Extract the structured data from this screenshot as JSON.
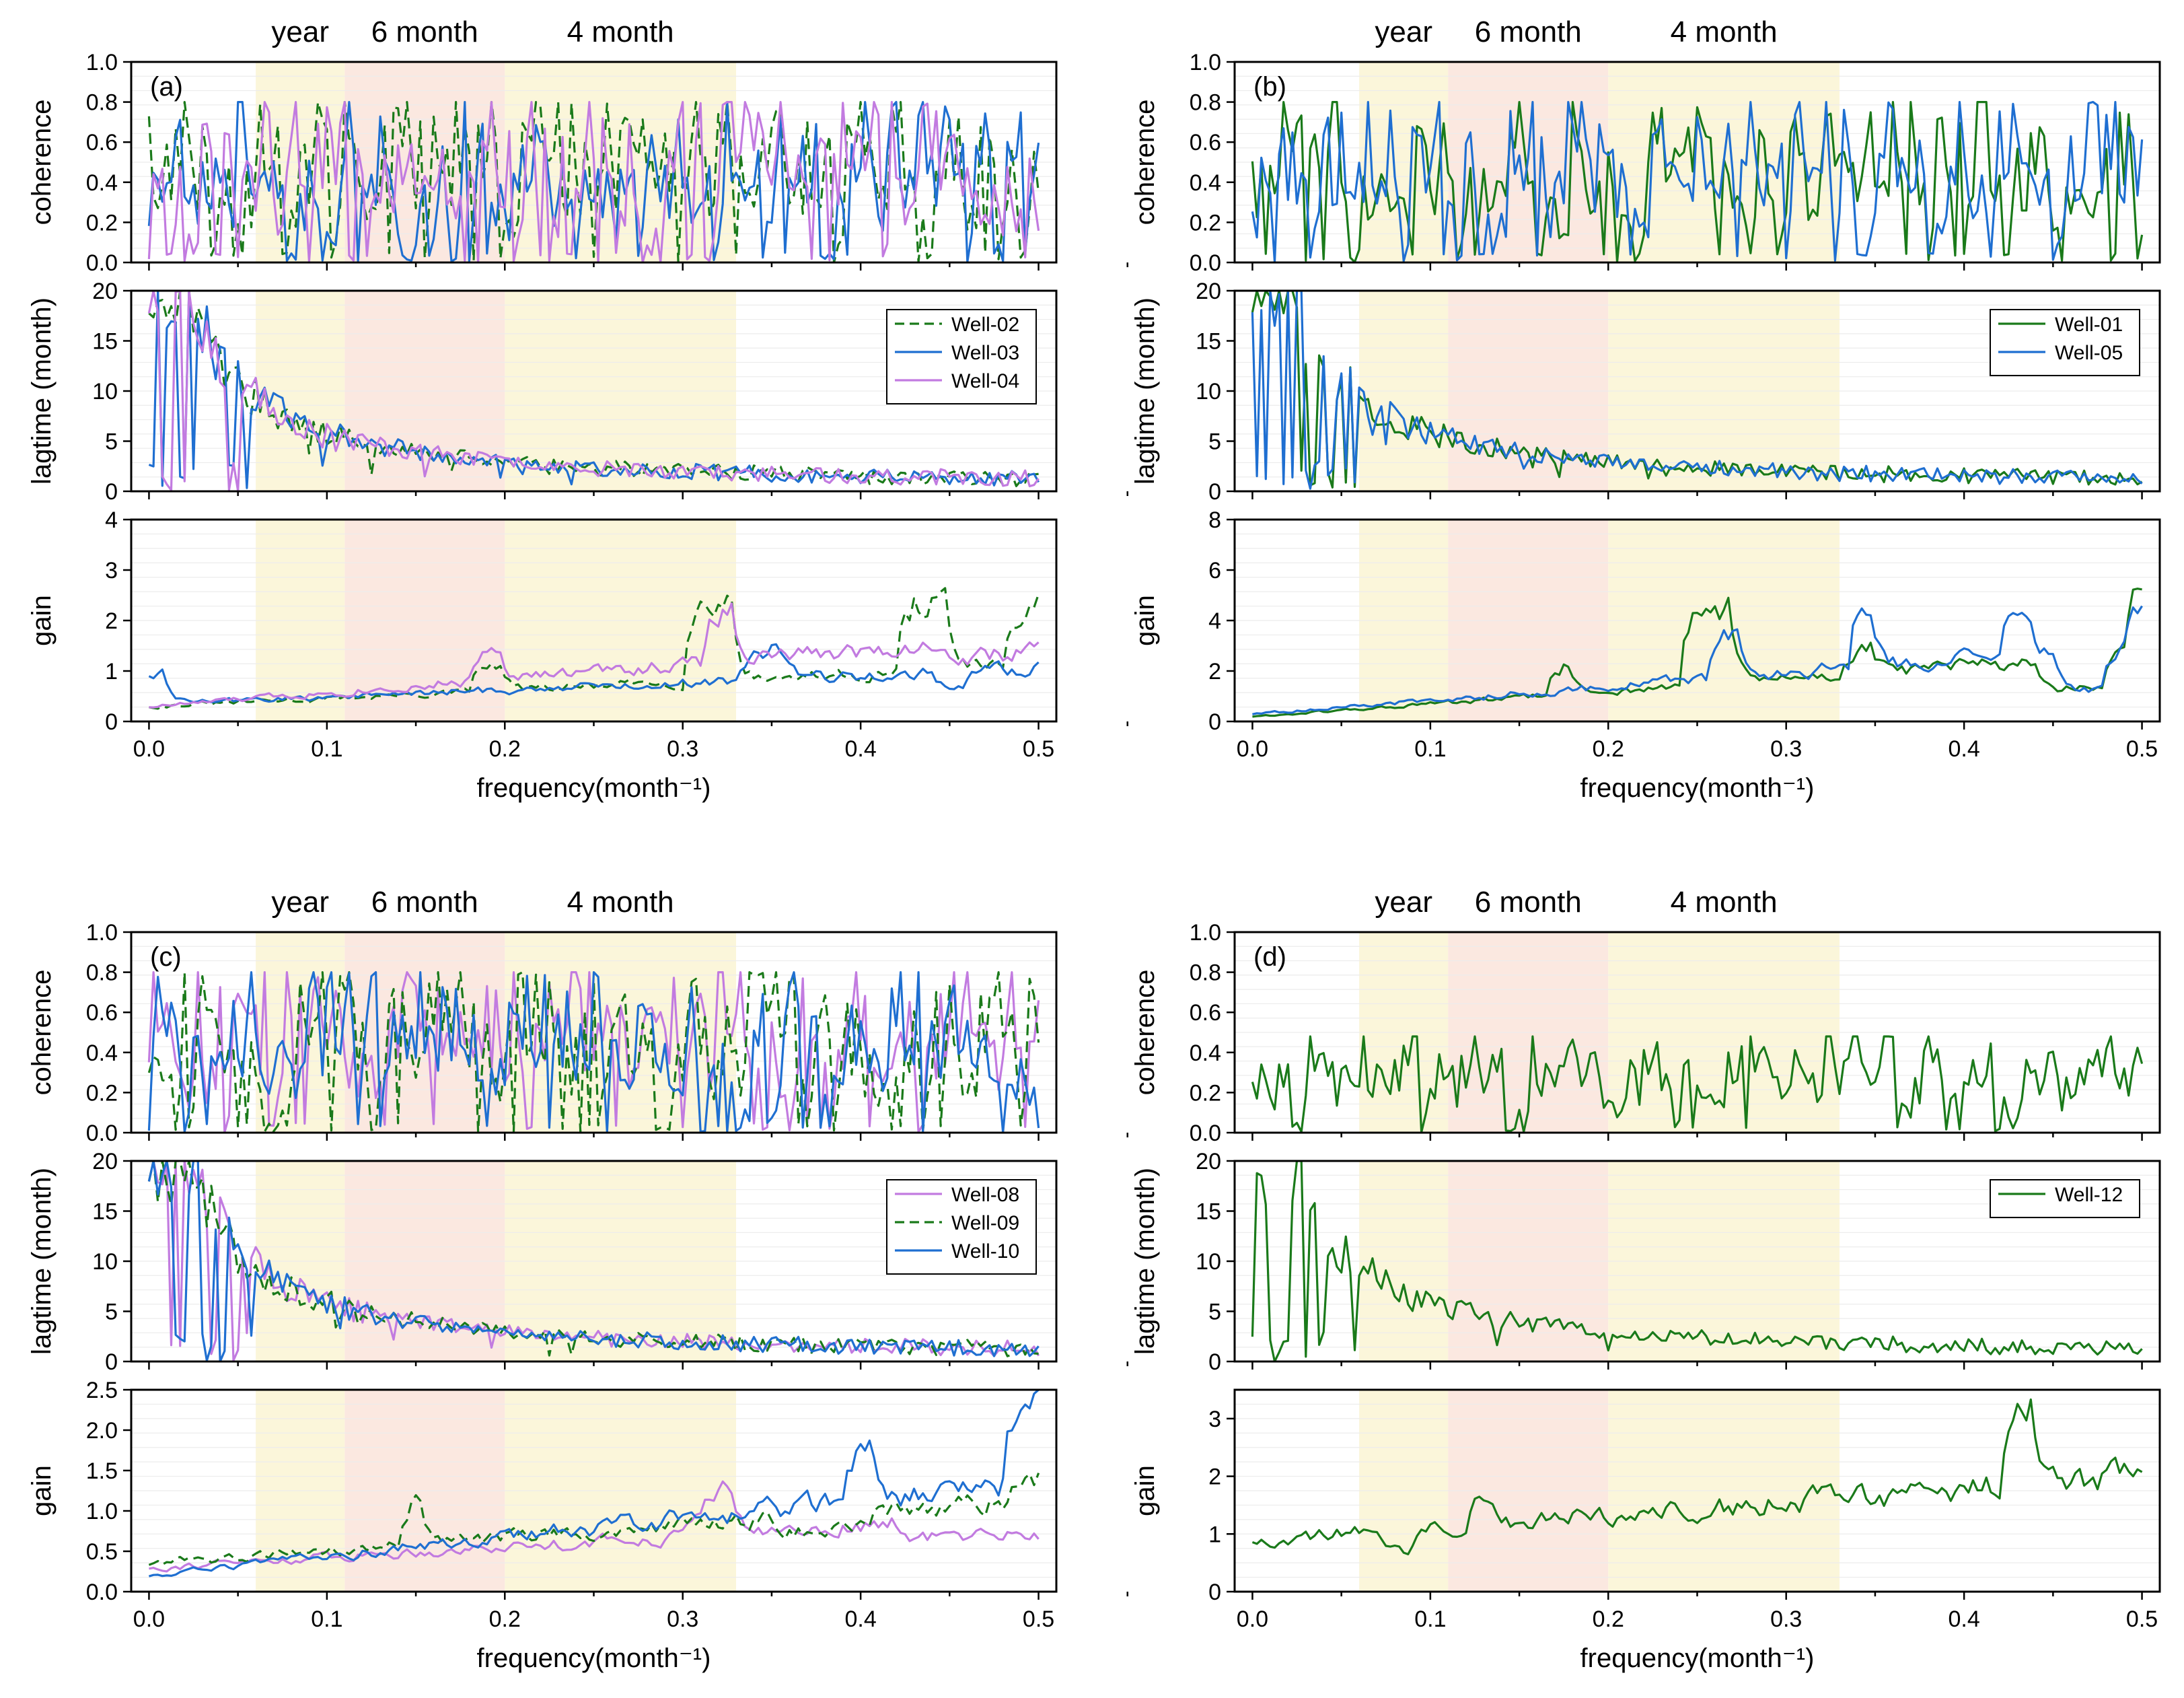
{
  "chart_data": [
    {
      "panel": "(a)",
      "type": "line",
      "bands": {
        "labels": [
          "year",
          "6 month",
          "4 month"
        ]
      },
      "xlabel": "frequency(month⁻¹)",
      "xticks": [
        "0.0",
        "0.1",
        "0.2",
        "0.3",
        "0.4",
        "0.5"
      ],
      "xlim": [
        -0.01,
        0.51
      ],
      "series": [
        {
          "name": "Well-02",
          "color": "#1a7a1a",
          "dash": true
        },
        {
          "name": "Well-03",
          "color": "#1f6fd1",
          "dash": false
        },
        {
          "name": "Well-04",
          "color": "#c27be0",
          "dash": false
        }
      ],
      "subplots": [
        {
          "ylabel": "coherence",
          "ylim": [
            0,
            1.0
          ],
          "yticks": [
            "0.0",
            "0.2",
            "0.4",
            "0.6",
            "0.8",
            "1.0"
          ]
        },
        {
          "ylabel": "lagtime (month)",
          "ylim": [
            0,
            20
          ],
          "yticks": [
            "0",
            "5",
            "10",
            "15",
            "20"
          ],
          "legend": true
        },
        {
          "ylabel": "gain",
          "ylim": [
            0,
            4
          ],
          "yticks": [
            "0",
            "1",
            "2",
            "3",
            "4"
          ]
        }
      ]
    },
    {
      "panel": "(b)",
      "type": "line",
      "bands": {
        "labels": [
          "year",
          "6 month",
          "4 month"
        ]
      },
      "xlabel": "frequency(month⁻¹)",
      "xticks": [
        "0.0",
        "0.1",
        "0.2",
        "0.3",
        "0.4",
        "0.5"
      ],
      "xlim": [
        -0.01,
        0.51
      ],
      "series": [
        {
          "name": "Well-01",
          "color": "#1a7a1a",
          "dash": false
        },
        {
          "name": "Well-05",
          "color": "#1f6fd1",
          "dash": false
        }
      ],
      "subplots": [
        {
          "ylabel": "coherence",
          "ylim": [
            0,
            1.0
          ],
          "yticks": [
            "0.0",
            "0.2",
            "0.4",
            "0.6",
            "0.8",
            "1.0"
          ]
        },
        {
          "ylabel": "lagtime (month)",
          "ylim": [
            0,
            20
          ],
          "yticks": [
            "0",
            "5",
            "10",
            "15",
            "20"
          ],
          "legend": true
        },
        {
          "ylabel": "gain",
          "ylim": [
            0,
            8
          ],
          "yticks": [
            "0",
            "2",
            "4",
            "6",
            "8"
          ]
        }
      ]
    },
    {
      "panel": "(c)",
      "type": "line",
      "bands": {
        "labels": [
          "year",
          "6 month",
          "4 month"
        ]
      },
      "xlabel": "frequency(month⁻¹)",
      "xticks": [
        "0.0",
        "0.1",
        "0.2",
        "0.3",
        "0.4",
        "0.5"
      ],
      "xlim": [
        -0.01,
        0.51
      ],
      "series": [
        {
          "name": "Well-08",
          "color": "#c27be0",
          "dash": false
        },
        {
          "name": "Well-09",
          "color": "#1a7a1a",
          "dash": true
        },
        {
          "name": "Well-10",
          "color": "#1f6fd1",
          "dash": false
        }
      ],
      "subplots": [
        {
          "ylabel": "coherence",
          "ylim": [
            0,
            1.0
          ],
          "yticks": [
            "0.0",
            "0.2",
            "0.4",
            "0.6",
            "0.8",
            "1.0"
          ]
        },
        {
          "ylabel": "lagtime (month)",
          "ylim": [
            0,
            20
          ],
          "yticks": [
            "0",
            "5",
            "10",
            "15",
            "20"
          ],
          "legend": true
        },
        {
          "ylabel": "gain",
          "ylim": [
            0,
            2.5
          ],
          "yticks": [
            "0.0",
            "0.5",
            "1.0",
            "1.5",
            "2.0",
            "2.5"
          ]
        }
      ]
    },
    {
      "panel": "(d)",
      "type": "line",
      "bands": {
        "labels": [
          "year",
          "6 month",
          "4 month"
        ]
      },
      "xlabel": "frequency(month⁻¹)",
      "xticks": [
        "0.0",
        "0.1",
        "0.2",
        "0.3",
        "0.4",
        "0.5"
      ],
      "xlim": [
        -0.01,
        0.51
      ],
      "series": [
        {
          "name": "Well-12",
          "color": "#1a7a1a",
          "dash": false
        }
      ],
      "subplots": [
        {
          "ylabel": "coherence",
          "ylim": [
            0,
            1.0
          ],
          "yticks": [
            "0.0",
            "0.2",
            "0.4",
            "0.6",
            "0.8",
            "1.0"
          ]
        },
        {
          "ylabel": "lagtime (month)",
          "ylim": [
            0,
            20
          ],
          "yticks": [
            "0",
            "5",
            "10",
            "15",
            "20"
          ],
          "legend": true
        },
        {
          "ylabel": "gain",
          "ylim": [
            0,
            3.5
          ],
          "yticks": [
            "0",
            "1",
            "2",
            "3"
          ]
        }
      ]
    }
  ]
}
